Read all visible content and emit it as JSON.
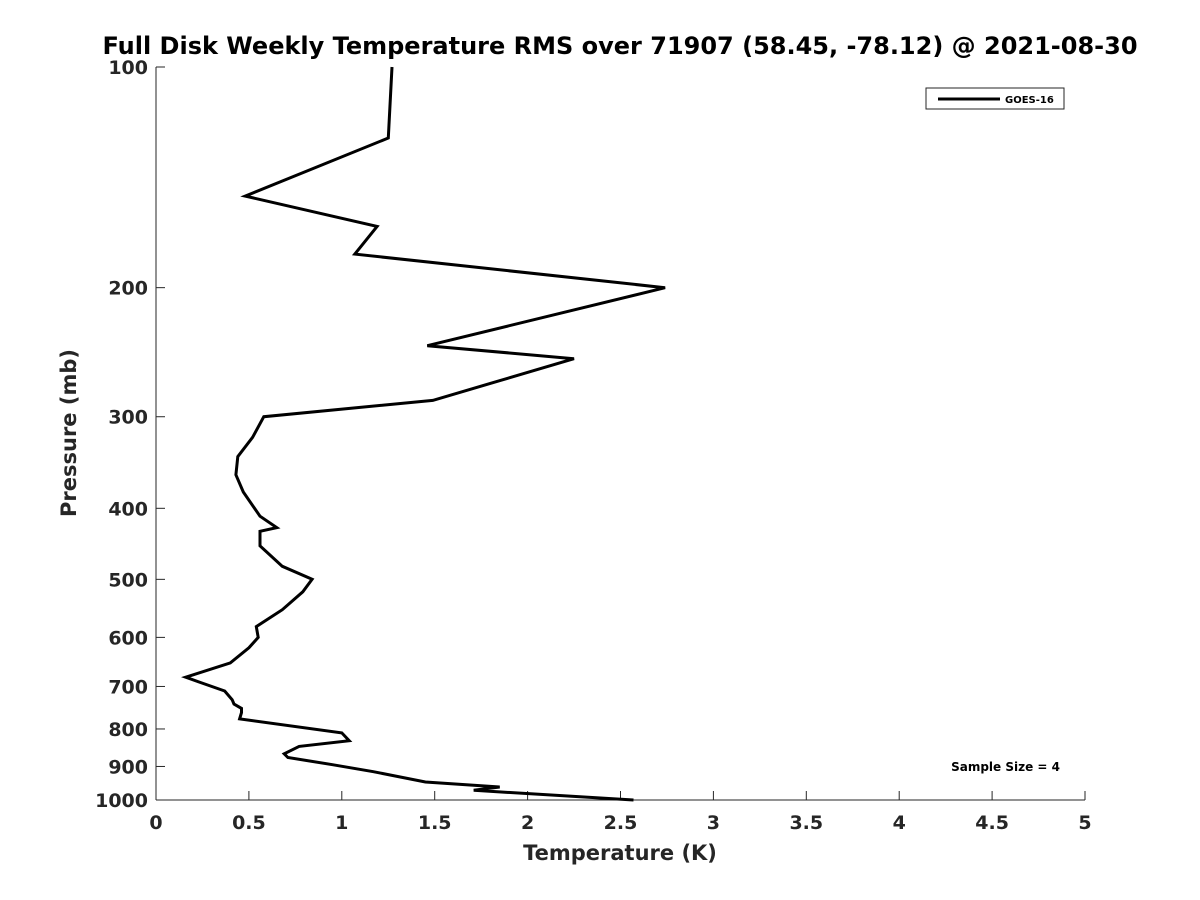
{
  "chart_data": {
    "type": "line",
    "title": "Full Disk Weekly Temperature RMS over 71907 (58.45, -78.12) @ 2021-08-30",
    "xlabel": "Temperature (K)",
    "ylabel": "Pressure (mb)",
    "xlim": [
      0,
      5
    ],
    "ylim": [
      100,
      1000
    ],
    "y_scale": "log",
    "y_reversed": true,
    "x_ticks": [
      0,
      0.5,
      1,
      1.5,
      2,
      2.5,
      3,
      3.5,
      4,
      4.5,
      5
    ],
    "x_tick_labels": [
      "0",
      "0.5",
      "1",
      "1.5",
      "2",
      "2.5",
      "3",
      "3.5",
      "4",
      "4.5",
      "5"
    ],
    "y_ticks": [
      100,
      200,
      300,
      400,
      500,
      600,
      700,
      800,
      900,
      1000
    ],
    "y_tick_labels": [
      "100",
      "200",
      "300",
      "400",
      "500",
      "600",
      "700",
      "800",
      "900",
      "1000"
    ],
    "grid": false,
    "legend_position": "top-right",
    "annotation": "Sample Size = 4",
    "series": [
      {
        "name": "GOES-16",
        "color": "#000000",
        "points": [
          [
            1.27,
            100
          ],
          [
            1.25,
            125
          ],
          [
            0.48,
            150
          ],
          [
            1.19,
            165
          ],
          [
            1.07,
            180
          ],
          [
            2.74,
            200
          ],
          [
            1.46,
            240
          ],
          [
            2.25,
            250
          ],
          [
            1.49,
            285
          ],
          [
            0.58,
            300
          ],
          [
            0.52,
            320
          ],
          [
            0.44,
            340
          ],
          [
            0.43,
            360
          ],
          [
            0.47,
            380
          ],
          [
            0.56,
            410
          ],
          [
            0.65,
            425
          ],
          [
            0.56,
            430
          ],
          [
            0.56,
            450
          ],
          [
            0.68,
            480
          ],
          [
            0.84,
            500
          ],
          [
            0.79,
            520
          ],
          [
            0.68,
            550
          ],
          [
            0.54,
            580
          ],
          [
            0.55,
            600
          ],
          [
            0.5,
            620
          ],
          [
            0.4,
            650
          ],
          [
            0.16,
            680
          ],
          [
            0.23,
            690
          ],
          [
            0.37,
            710
          ],
          [
            0.41,
            730
          ],
          [
            0.42,
            740
          ],
          [
            0.46,
            750
          ],
          [
            0.46,
            760
          ],
          [
            0.45,
            775
          ],
          [
            1.0,
            810
          ],
          [
            1.04,
            830
          ],
          [
            0.77,
            845
          ],
          [
            0.69,
            865
          ],
          [
            0.71,
            875
          ],
          [
            0.95,
            895
          ],
          [
            1.17,
            915
          ],
          [
            1.45,
            945
          ],
          [
            1.85,
            960
          ],
          [
            1.71,
            970
          ],
          [
            2.57,
            1000
          ]
        ]
      }
    ]
  }
}
